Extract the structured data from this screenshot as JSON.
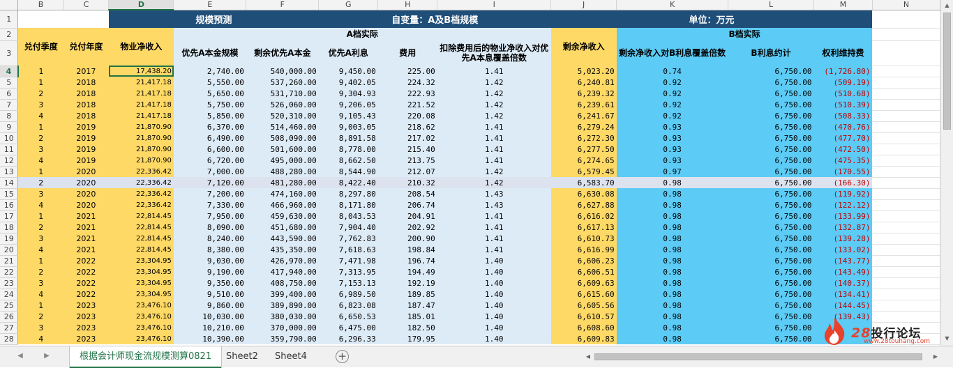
{
  "columns": [
    "B",
    "C",
    "D",
    "E",
    "F",
    "G",
    "H",
    "I",
    "J",
    "K",
    "L",
    "M",
    "N"
  ],
  "selected_column": "D",
  "row1": {
    "label": "1",
    "a": "规模预测",
    "b": "自变量：A及B档规模",
    "c": "单位：万元"
  },
  "row2": {
    "label": "2",
    "a_group": "A档实际",
    "b_group": "B档实际"
  },
  "row3": {
    "label": "3",
    "headers": [
      "兑付季度",
      "兑付年度",
      "物业净收入",
      "优先A本金规模",
      "剩余优先A本金",
      "优先A利息",
      "费用",
      "扣除费用后的物业净收入对优先A本息覆盖倍数",
      "剩余净收入",
      "剩余净收入对B利息覆盖倍数",
      "B利息约计",
      "权利维持费"
    ]
  },
  "rows": [
    {
      "r": "4",
      "q": "1",
      "y": "2017",
      "d": "17,438.20",
      "e": "2,740.00",
      "f": "540,000.00",
      "g": "9,450.00",
      "h": "225.00",
      "i": "1.41",
      "j": "5,023.20",
      "k": "0.74",
      "l": "6,750.00",
      "m": "(1,726.80)"
    },
    {
      "r": "5",
      "q": "1",
      "y": "2018",
      "d": "21,417.18",
      "e": "5,550.00",
      "f": "537,260.00",
      "g": "9,402.05",
      "h": "224.32",
      "i": "1.42",
      "j": "6,240.81",
      "k": "0.92",
      "l": "6,750.00",
      "m": "(509.19)"
    },
    {
      "r": "6",
      "q": "2",
      "y": "2018",
      "d": "21,417.18",
      "e": "5,650.00",
      "f": "531,710.00",
      "g": "9,304.93",
      "h": "222.93",
      "i": "1.42",
      "j": "6,239.32",
      "k": "0.92",
      "l": "6,750.00",
      "m": "(510.68)"
    },
    {
      "r": "7",
      "q": "3",
      "y": "2018",
      "d": "21,417.18",
      "e": "5,750.00",
      "f": "526,060.00",
      "g": "9,206.05",
      "h": "221.52",
      "i": "1.42",
      "j": "6,239.61",
      "k": "0.92",
      "l": "6,750.00",
      "m": "(510.39)"
    },
    {
      "r": "8",
      "q": "4",
      "y": "2018",
      "d": "21,417.18",
      "e": "5,850.00",
      "f": "520,310.00",
      "g": "9,105.43",
      "h": "220.08",
      "i": "1.42",
      "j": "6,241.67",
      "k": "0.92",
      "l": "6,750.00",
      "m": "(508.33)"
    },
    {
      "r": "9",
      "q": "1",
      "y": "2019",
      "d": "21,870.90",
      "e": "6,370.00",
      "f": "514,460.00",
      "g": "9,003.05",
      "h": "218.62",
      "i": "1.41",
      "j": "6,279.24",
      "k": "0.93",
      "l": "6,750.00",
      "m": "(470.76)"
    },
    {
      "r": "10",
      "q": "2",
      "y": "2019",
      "d": "21,870.90",
      "e": "6,490.00",
      "f": "508,090.00",
      "g": "8,891.58",
      "h": "217.02",
      "i": "1.41",
      "j": "6,272.30",
      "k": "0.93",
      "l": "6,750.00",
      "m": "(477.70)"
    },
    {
      "r": "11",
      "q": "3",
      "y": "2019",
      "d": "21,870.90",
      "e": "6,600.00",
      "f": "501,600.00",
      "g": "8,778.00",
      "h": "215.40",
      "i": "1.41",
      "j": "6,277.50",
      "k": "0.93",
      "l": "6,750.00",
      "m": "(472.50)"
    },
    {
      "r": "12",
      "q": "4",
      "y": "2019",
      "d": "21,870.90",
      "e": "6,720.00",
      "f": "495,000.00",
      "g": "8,662.50",
      "h": "213.75",
      "i": "1.41",
      "j": "6,274.65",
      "k": "0.93",
      "l": "6,750.00",
      "m": "(475.35)"
    },
    {
      "r": "13",
      "q": "1",
      "y": "2020",
      "d": "22,336.42",
      "e": "7,000.00",
      "f": "488,280.00",
      "g": "8,544.90",
      "h": "212.07",
      "i": "1.42",
      "j": "6,579.45",
      "k": "0.97",
      "l": "6,750.00",
      "m": "(170.55)"
    },
    {
      "r": "14",
      "q": "2",
      "y": "2020",
      "d": "22,336.42",
      "e": "7,120.00",
      "f": "481,280.00",
      "g": "8,422.40",
      "h": "210.32",
      "i": "1.42",
      "j": "6,583.70",
      "k": "0.98",
      "l": "6,750.00",
      "m": "(166.30)"
    },
    {
      "r": "15",
      "q": "3",
      "y": "2020",
      "d": "22,336.42",
      "e": "7,200.00",
      "f": "474,160.00",
      "g": "8,297.80",
      "h": "208.54",
      "i": "1.43",
      "j": "6,630.08",
      "k": "0.98",
      "l": "6,750.00",
      "m": "(119.92)"
    },
    {
      "r": "16",
      "q": "4",
      "y": "2020",
      "d": "22,336.42",
      "e": "7,330.00",
      "f": "466,960.00",
      "g": "8,171.80",
      "h": "206.74",
      "i": "1.43",
      "j": "6,627.88",
      "k": "0.98",
      "l": "6,750.00",
      "m": "(122.12)"
    },
    {
      "r": "17",
      "q": "1",
      "y": "2021",
      "d": "22,814.45",
      "e": "7,950.00",
      "f": "459,630.00",
      "g": "8,043.53",
      "h": "204.91",
      "i": "1.41",
      "j": "6,616.02",
      "k": "0.98",
      "l": "6,750.00",
      "m": "(133.99)"
    },
    {
      "r": "18",
      "q": "2",
      "y": "2021",
      "d": "22,814.45",
      "e": "8,090.00",
      "f": "451,680.00",
      "g": "7,904.40",
      "h": "202.92",
      "i": "1.41",
      "j": "6,617.13",
      "k": "0.98",
      "l": "6,750.00",
      "m": "(132.87)"
    },
    {
      "r": "19",
      "q": "3",
      "y": "2021",
      "d": "22,814.45",
      "e": "8,240.00",
      "f": "443,590.00",
      "g": "7,762.83",
      "h": "200.90",
      "i": "1.41",
      "j": "6,610.73",
      "k": "0.98",
      "l": "6,750.00",
      "m": "(139.28)"
    },
    {
      "r": "20",
      "q": "4",
      "y": "2021",
      "d": "22,814.45",
      "e": "8,380.00",
      "f": "435,350.00",
      "g": "7,618.63",
      "h": "198.84",
      "i": "1.41",
      "j": "6,616.99",
      "k": "0.98",
      "l": "6,750.00",
      "m": "(133.02)"
    },
    {
      "r": "21",
      "q": "1",
      "y": "2022",
      "d": "23,304.95",
      "e": "9,030.00",
      "f": "426,970.00",
      "g": "7,471.98",
      "h": "196.74",
      "i": "1.40",
      "j": "6,606.23",
      "k": "0.98",
      "l": "6,750.00",
      "m": "(143.77)"
    },
    {
      "r": "22",
      "q": "2",
      "y": "2022",
      "d": "23,304.95",
      "e": "9,190.00",
      "f": "417,940.00",
      "g": "7,313.95",
      "h": "194.49",
      "i": "1.40",
      "j": "6,606.51",
      "k": "0.98",
      "l": "6,750.00",
      "m": "(143.49)"
    },
    {
      "r": "23",
      "q": "3",
      "y": "2022",
      "d": "23,304.95",
      "e": "9,350.00",
      "f": "408,750.00",
      "g": "7,153.13",
      "h": "192.19",
      "i": "1.40",
      "j": "6,609.63",
      "k": "0.98",
      "l": "6,750.00",
      "m": "(140.37)"
    },
    {
      "r": "24",
      "q": "4",
      "y": "2022",
      "d": "23,304.95",
      "e": "9,510.00",
      "f": "399,400.00",
      "g": "6,989.50",
      "h": "189.85",
      "i": "1.40",
      "j": "6,615.60",
      "k": "0.98",
      "l": "6,750.00",
      "m": "(134.41)"
    },
    {
      "r": "25",
      "q": "1",
      "y": "2023",
      "d": "23,476.10",
      "e": "9,860.00",
      "f": "389,890.00",
      "g": "6,823.08",
      "h": "187.47",
      "i": "1.40",
      "j": "6,605.56",
      "k": "0.98",
      "l": "6,750.00",
      "m": "(144.45)"
    },
    {
      "r": "26",
      "q": "2",
      "y": "2023",
      "d": "23,476.10",
      "e": "10,030.00",
      "f": "380,030.00",
      "g": "6,650.53",
      "h": "185.01",
      "i": "1.40",
      "j": "6,610.57",
      "k": "0.98",
      "l": "6,750.00",
      "m": "(139.43)"
    },
    {
      "r": "27",
      "q": "3",
      "y": "2023",
      "d": "23,476.10",
      "e": "10,210.00",
      "f": "370,000.00",
      "g": "6,475.00",
      "h": "182.50",
      "i": "1.40",
      "j": "6,608.60",
      "k": "0.98",
      "l": "6,750.00",
      "m": ""
    },
    {
      "r": "28",
      "q": "4",
      "y": "2023",
      "d": "23,476.10",
      "e": "10,390.00",
      "f": "359,790.00",
      "g": "6,296.33",
      "h": "179.95",
      "i": "1.40",
      "j": "6,609.83",
      "k": "0.98",
      "l": "6,750.00",
      "m": ""
    }
  ],
  "tabs": [
    "根据会计师现金流规模测算0821",
    "Sheet2",
    "Sheet4"
  ],
  "add_sheet_label": "+",
  "watermark": {
    "number": "28",
    "name": "投行论坛",
    "site": "www.28touhang.com"
  },
  "colors": {
    "header_navy": "#1f4e79",
    "yellow": "#ffd966",
    "light_blue": "#ddebf7",
    "cyan": "#5ccbf5",
    "negative": "#c00000",
    "accent": "#217346"
  }
}
